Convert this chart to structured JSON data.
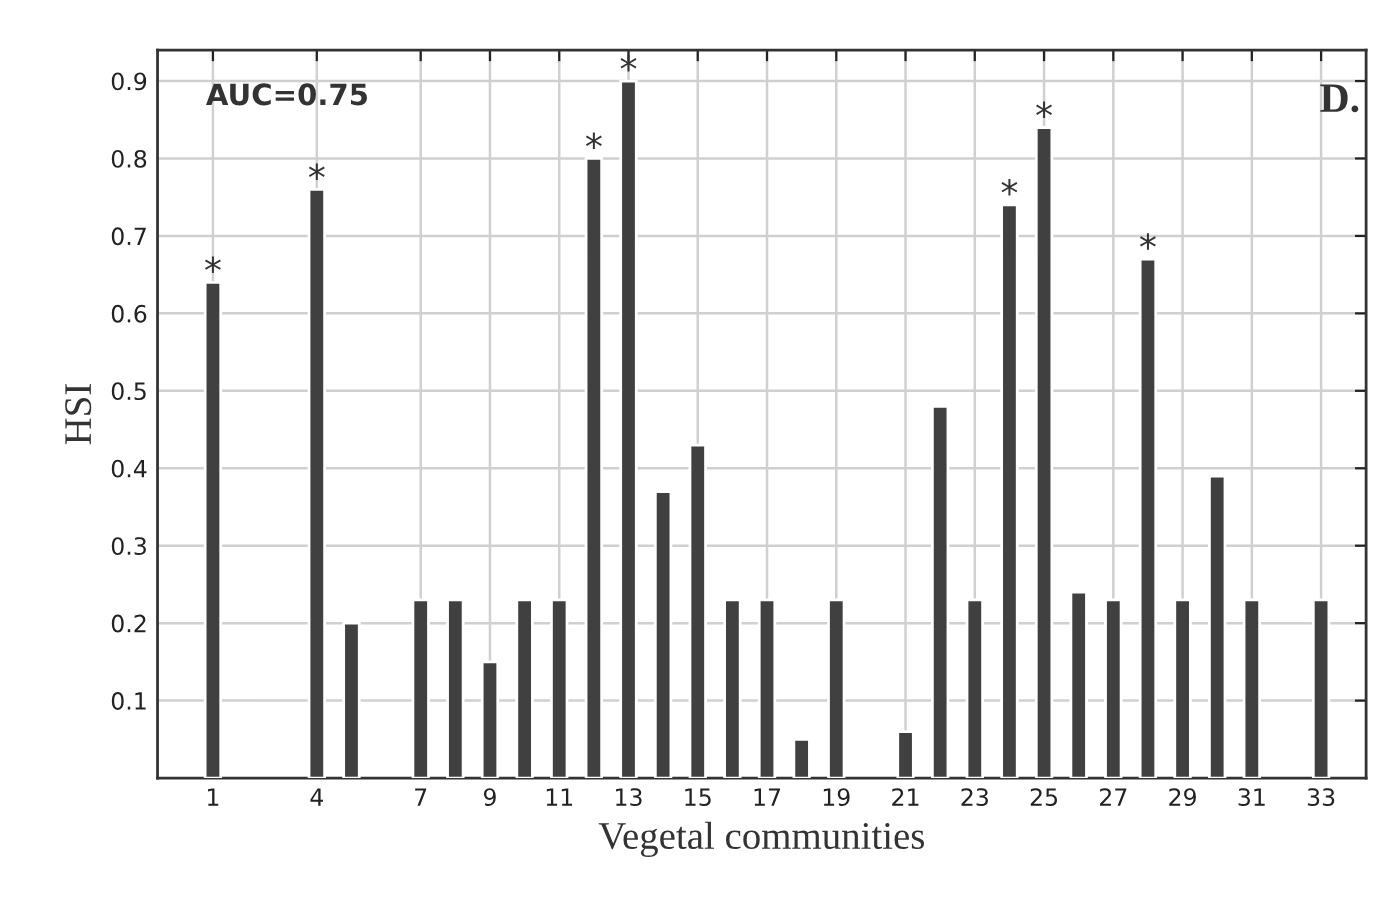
{
  "chart_data": {
    "type": "bar",
    "xlabel": "Vegetal communities",
    "ylabel": "HSI",
    "x": [
      1,
      2,
      3,
      4,
      5,
      6,
      7,
      8,
      9,
      10,
      11,
      12,
      13,
      14,
      15,
      16,
      17,
      18,
      19,
      20,
      21,
      22,
      23,
      24,
      25,
      26,
      27,
      28,
      29,
      30,
      31,
      32,
      33
    ],
    "values": [
      0.64,
      null,
      null,
      0.76,
      0.2,
      null,
      0.23,
      0.23,
      0.15,
      0.23,
      0.23,
      0.8,
      0.9,
      0.37,
      0.43,
      0.23,
      0.23,
      0.05,
      0.23,
      null,
      0.06,
      0.48,
      0.23,
      0.74,
      0.84,
      0.24,
      0.23,
      0.67,
      0.23,
      0.39,
      0.23,
      null,
      0.23
    ],
    "color": "#404040",
    "xlim": [
      -0.6,
      34.3
    ],
    "xticks": [
      1,
      4,
      7,
      9,
      11,
      13,
      15,
      17,
      19,
      21,
      23,
      25,
      27,
      29,
      31,
      33
    ],
    "ylim": [
      0,
      0.94
    ],
    "yticks": [
      0.1,
      0.2,
      0.3,
      0.4,
      0.5,
      0.6,
      0.7,
      0.8,
      0.9
    ],
    "grid": true,
    "legend": false,
    "annotations": [
      "AUC=0.75",
      "D.",
      {
        "text": "*",
        "x": 1,
        "y": 0.64
      },
      {
        "text": "*",
        "x": 4,
        "y": 0.76
      },
      {
        "text": "*",
        "x": 12,
        "y": 0.8
      },
      {
        "text": "*",
        "x": 13,
        "y": 0.9
      },
      {
        "text": "*",
        "x": 24,
        "y": 0.74
      },
      {
        "text": "*",
        "x": 25,
        "y": 0.84
      },
      {
        "text": "*",
        "x": 28,
        "y": 0.67
      }
    ]
  }
}
